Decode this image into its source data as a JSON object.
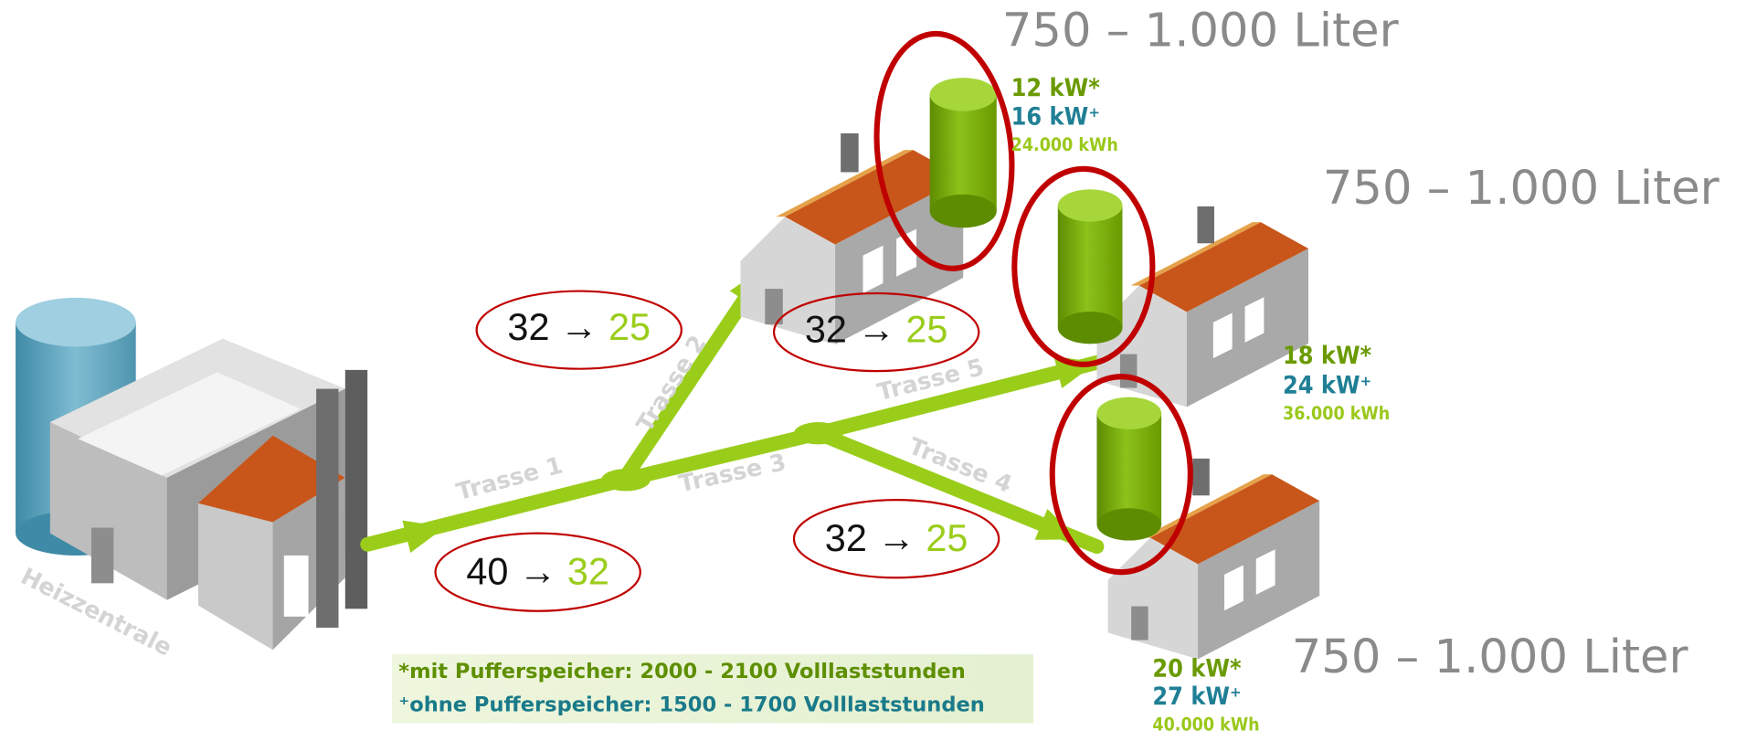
{
  "liter_label": "750 – 1.000 Liter",
  "source": "Heizzentrale",
  "pipes": [
    "Trasse 1",
    "Trasse 2",
    "Trasse 3",
    "Trasse 4",
    "Trasse 5"
  ],
  "flows": [
    {
      "from": "32",
      "arrow": "→",
      "to": "25"
    },
    {
      "from": "32",
      "arrow": "→",
      "to": "25"
    },
    {
      "from": "40",
      "arrow": "→",
      "to": "32"
    },
    {
      "from": "32",
      "arrow": "→",
      "to": "25"
    }
  ],
  "consumers": [
    {
      "kw_buffer": "12 kW*",
      "kw_no_buffer": "16 kW⁺",
      "kwh": "24.000 kWh"
    },
    {
      "kw_buffer": "18 kW*",
      "kw_no_buffer": "24 kW⁺",
      "kwh": "36.000 kWh"
    },
    {
      "kw_buffer": "20 kW*",
      "kw_no_buffer": "27 kW⁺",
      "kwh": "40.000 kWh"
    }
  ],
  "footnotes": [
    "*mit Pufferspeicher: 2000 - 2100 Volllaststunden",
    "⁺ohne Pufferspeicher: 1500 - 1700 Volllaststunden"
  ]
}
